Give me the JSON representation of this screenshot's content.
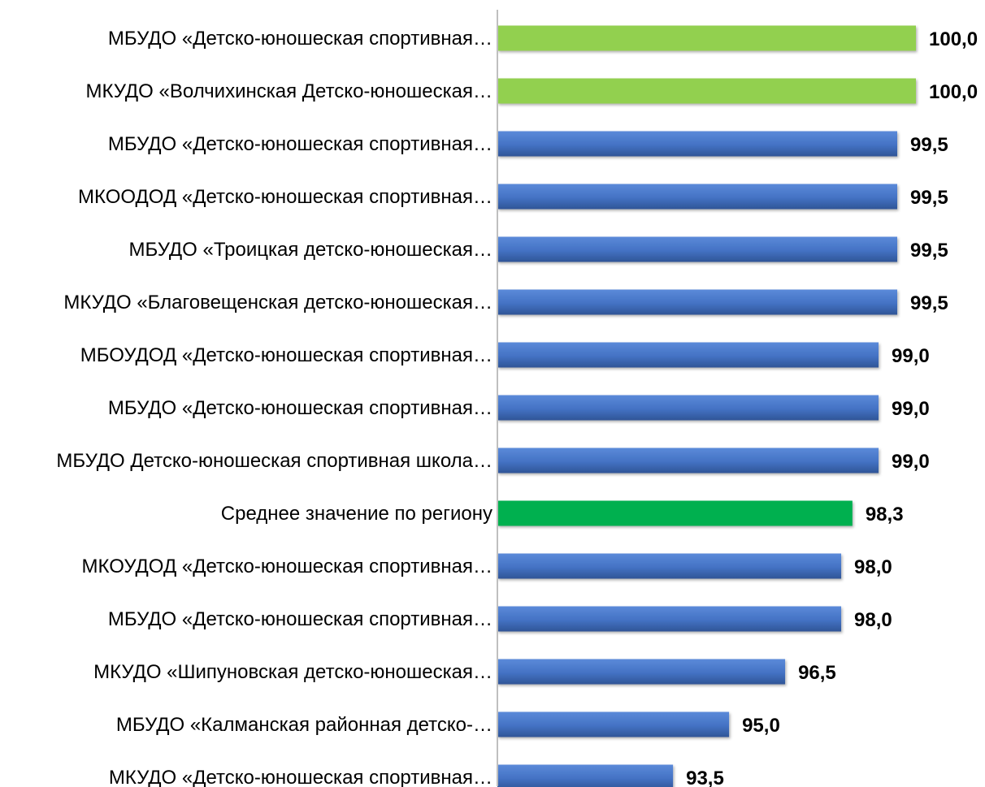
{
  "chart_data": {
    "type": "bar",
    "orientation": "horizontal",
    "categories": [
      "МБУДО «Детско-юношеская спортивная…",
      "МКУДО «Волчихинская Детско-юношеская…",
      "МБУДО «Детско-юношеская спортивная…",
      "МКООДОД «Детско-юношеская спортивная…",
      "МБУДО «Троицкая детско-юношеская…",
      "МКУДО «Благовещенская детско-юношеская…",
      "МБОУДОД «Детско-юношеская спортивная…",
      "МБУДО «Детско-юношеская спортивная…",
      "МБУДО Детско-юношеская спортивная школа…",
      "Среднее значение по региону",
      "МКОУДОД «Детско-юношеская спортивная…",
      "МБУДО «Детско-юношеская спортивная…",
      "МКУДО «Шипуновская детско-юношеская…",
      "МБУДО «Калманская районная детско-…",
      "МКУДО «Детско-юношеская спортивная…"
    ],
    "values": [
      100.0,
      100.0,
      99.5,
      99.5,
      99.5,
      99.5,
      99.0,
      99.0,
      99.0,
      98.3,
      98.0,
      98.0,
      96.5,
      95.0,
      93.5
    ],
    "value_labels": [
      "100,0",
      "100,0",
      "99,5",
      "99,5",
      "99,5",
      "99,5",
      "99,0",
      "99,0",
      "99,0",
      "98,3",
      "98,0",
      "98,0",
      "96,5",
      "95,0",
      "93,5"
    ],
    "bar_colors": [
      "#92d050",
      "#92d050",
      "#4472c4",
      "#4472c4",
      "#4472c4",
      "#4472c4",
      "#4472c4",
      "#4472c4",
      "#4472c4",
      "#00b050",
      "#4472c4",
      "#4472c4",
      "#4472c4",
      "#4472c4",
      "#4472c4"
    ],
    "xlim": [
      88.8,
      100.0
    ],
    "title": "",
    "xlabel": "",
    "ylabel": "",
    "grid": false,
    "legend": "none"
  }
}
